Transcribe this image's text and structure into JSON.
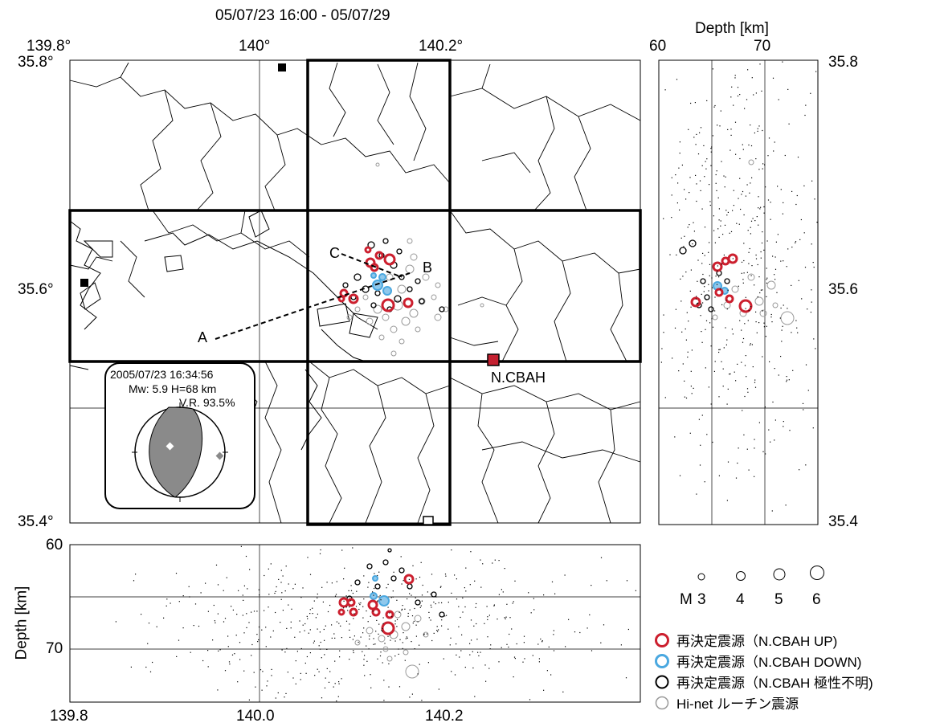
{
  "title": "05/07/23 16:00 - 05/07/29",
  "map": {
    "lon_ticks": [
      "139.8°",
      "140°",
      "140.2°"
    ],
    "lat_ticks": [
      "35.8°",
      "35.6°",
      "35.4°"
    ],
    "lat_ticks_right": [
      "35.8",
      "35.6",
      "35.4"
    ],
    "station_label": "N.CBAH",
    "profile_labels": [
      "A",
      "B",
      "C"
    ],
    "colors": {
      "up": "#cc1f2e",
      "down": "#4aa8e0",
      "unknown": "#000000",
      "routine": "#9a9a9a",
      "station": "#c42030"
    }
  },
  "focal_mechanism": {
    "datetime": "2005/07/23 16:34:56",
    "magnitude_line": "Mw: 5.9  H=68 km",
    "variance_reduction": "V.R. 93.5%"
  },
  "depth_panel_right": {
    "axis_title": "Depth [km]",
    "ticks": [
      "60",
      "70"
    ]
  },
  "depth_panel_bottom": {
    "axis_title": "Depth [km]",
    "y_ticks": [
      "60",
      "70"
    ],
    "x_ticks": [
      "139.8",
      "140.0",
      "140.2"
    ]
  },
  "magnitude_scale": {
    "prefix": "M",
    "labels": [
      "3",
      "4",
      "5",
      "6"
    ]
  },
  "legend": [
    {
      "label": "再決定震源（N.CBAH UP)",
      "icon": "circle-red-icon"
    },
    {
      "label": "再決定震源（N.CBAH DOWN)",
      "icon": "circle-blue-icon"
    },
    {
      "label": "再決定震源（N.CBAH 極性不明)",
      "icon": "circle-black-icon"
    },
    {
      "label": "Hi-net ルーチン震源",
      "icon": "circle-gray-icon"
    }
  ]
}
